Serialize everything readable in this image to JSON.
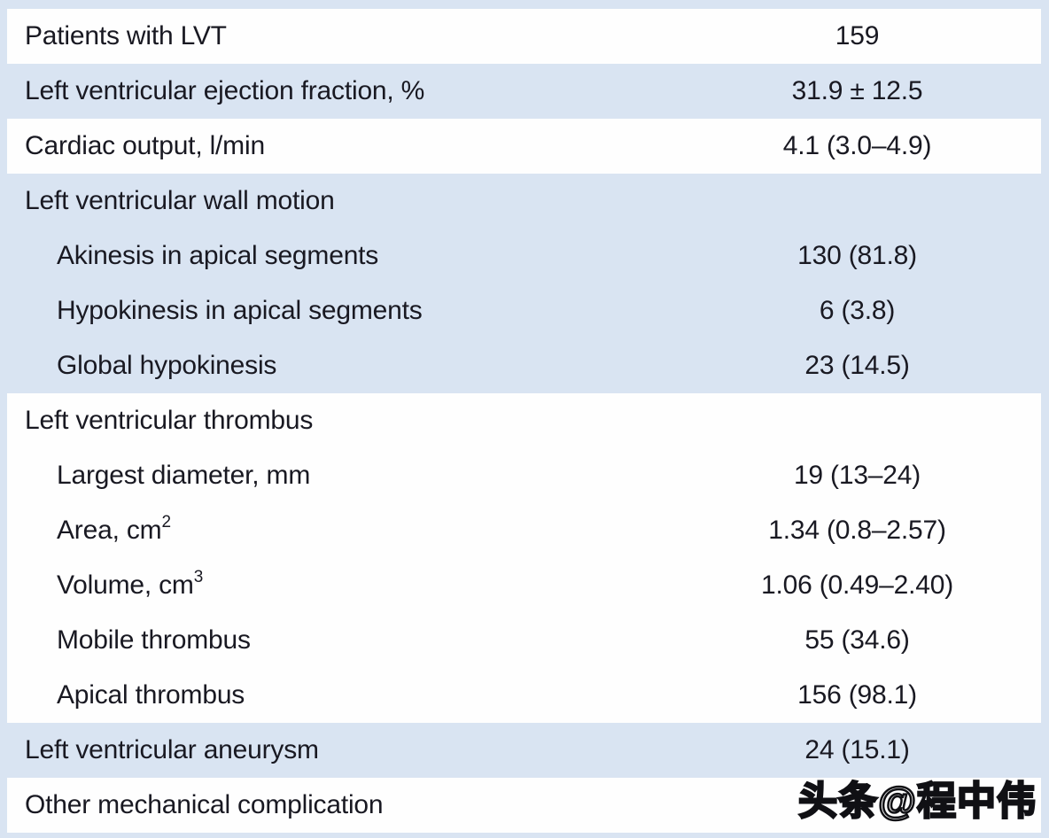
{
  "table": {
    "rows": [
      {
        "label": "Patients with LVT",
        "value": "159"
      },
      {
        "label": "Left ventricular ejection fraction, %",
        "value": "31.9 ± 12.5"
      },
      {
        "label": "Cardiac output, l/min",
        "value": "4.1 (3.0–4.9)"
      },
      {
        "label": "Left ventricular wall motion",
        "value": ""
      },
      {
        "label": "Akinesis in apical segments",
        "value": "130 (81.8)"
      },
      {
        "label": "Hypokinesis in apical segments",
        "value": "6 (3.8)"
      },
      {
        "label": "Global hypokinesis",
        "value": "23 (14.5)"
      },
      {
        "label": "Left ventricular thrombus",
        "value": ""
      },
      {
        "label": "Largest diameter, mm",
        "value": "19 (13–24)"
      },
      {
        "label": "Area, cm",
        "label_sup": "2",
        "value": "1.34 (0.8–2.57)"
      },
      {
        "label": "Volume, cm",
        "label_sup": "3",
        "value": "1.06 (0.49–2.40)"
      },
      {
        "label": "Mobile thrombus",
        "value": "55 (34.6)"
      },
      {
        "label": "Apical thrombus",
        "value": "156 (98.1)"
      },
      {
        "label": "Left ventricular aneurysm",
        "value": "24 (15.1)"
      },
      {
        "label": "Other mechanical complication",
        "value": ""
      }
    ]
  },
  "colors": {
    "row_shaded_blue": "#d9e4f2",
    "row_white": "#fefefe",
    "text": "#191922"
  },
  "watermark": {
    "text": "头条@程中伟"
  }
}
